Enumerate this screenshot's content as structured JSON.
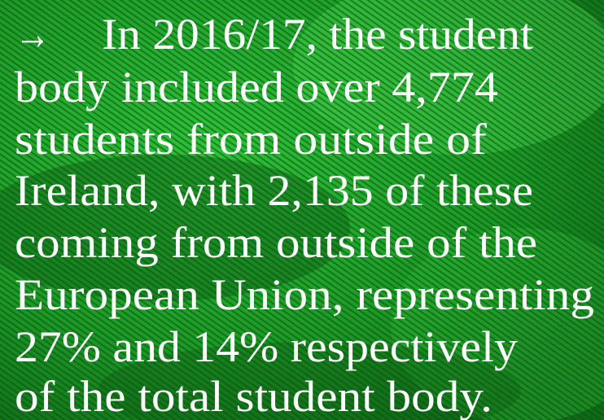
{
  "text": {
    "arrow": "→",
    "lines": [
      "In 2016/17, the student",
      "body included over 4,774",
      "students from outside of",
      "Ireland, with 2,135 of these",
      "coming from outside of the",
      "European Union, representing",
      "27% and 14% respectively",
      "of the total student body."
    ]
  }
}
